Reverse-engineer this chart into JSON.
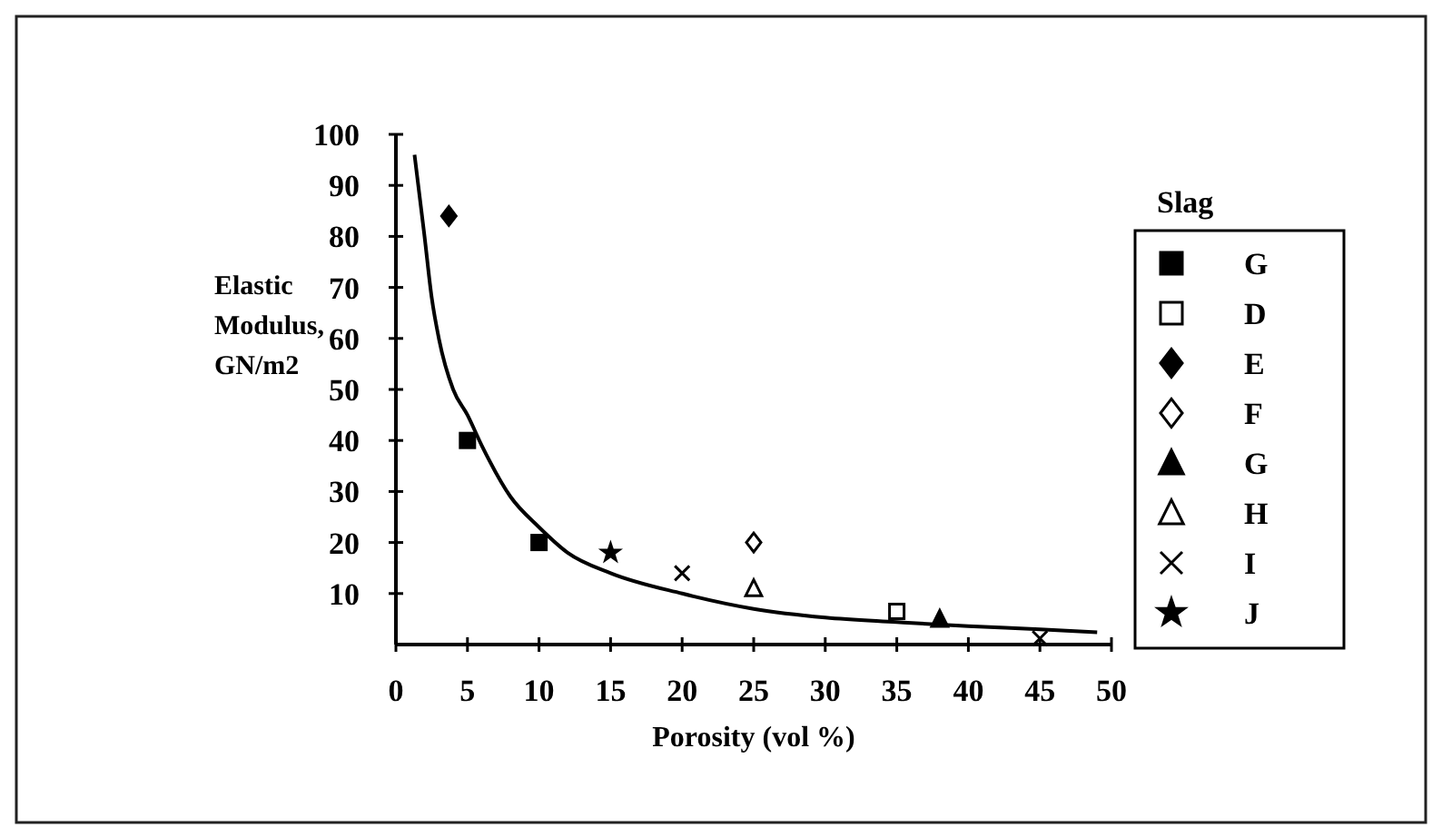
{
  "chart_data": {
    "type": "scatter",
    "xlabel": "Porosity (vol %)",
    "ylabel": "Elastic Modulus, GN/m2",
    "legend_title": "Slag",
    "legend": "right",
    "xlim": [
      0,
      50
    ],
    "ylim": [
      0,
      100
    ],
    "xticks": [
      0,
      5,
      10,
      15,
      20,
      25,
      30,
      35,
      40,
      45,
      50
    ],
    "yticks": [
      10,
      20,
      30,
      40,
      50,
      60,
      70,
      80,
      90,
      100
    ],
    "series": [
      {
        "name": "G",
        "color": "#000000",
        "marker": "square",
        "x": [
          5,
          10
        ],
        "values": [
          40,
          20
        ]
      },
      {
        "name": "D",
        "color": "#ffffff",
        "marker": "square",
        "x": [
          35
        ],
        "values": [
          6.5
        ]
      },
      {
        "name": "E",
        "color": "#000000",
        "marker": "diamond",
        "x": [
          3.7
        ],
        "values": [
          84
        ]
      },
      {
        "name": "F",
        "color": "#ffffff",
        "marker": "diamond",
        "x": [
          25
        ],
        "values": [
          20
        ]
      },
      {
        "name": "G",
        "color": "#000000",
        "marker": "triangle",
        "x": [
          38
        ],
        "values": [
          5
        ]
      },
      {
        "name": "H",
        "color": "#ffffff",
        "marker": "triangle",
        "x": [
          25
        ],
        "values": [
          11
        ]
      },
      {
        "name": "I",
        "color": "#000000",
        "marker": "cross",
        "x": [
          20,
          45
        ],
        "values": [
          14,
          1.2
        ]
      },
      {
        "name": "J",
        "color": "#000000",
        "marker": "star",
        "x": [
          15
        ],
        "values": [
          18
        ]
      },
      {
        "type": "line",
        "color": "#000000",
        "marker": "none",
        "x": [
          1.3,
          2,
          2.5,
          3,
          4,
          5,
          6,
          8,
          10,
          12,
          15,
          20,
          25,
          30,
          35,
          40,
          45,
          49
        ],
        "values": [
          96,
          80,
          68,
          60,
          50,
          45,
          39,
          29,
          23,
          18,
          14,
          10,
          7,
          5.3,
          4.4,
          3.6,
          3,
          2.4
        ]
      }
    ]
  }
}
